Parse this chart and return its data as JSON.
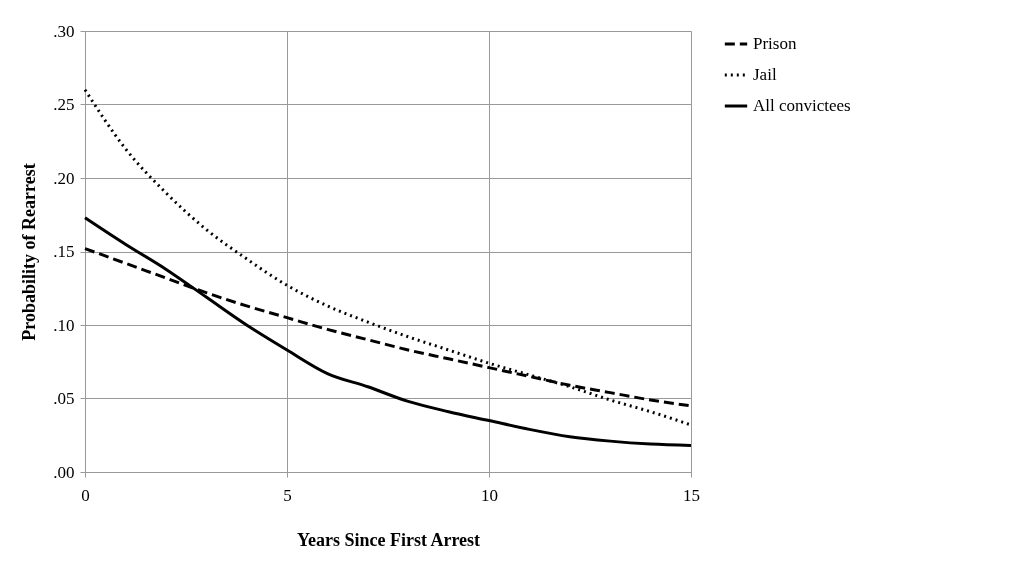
{
  "chart_data": {
    "type": "line",
    "xlabel": "Years Since First Arrest",
    "ylabel": "Probability of Rearrest",
    "x": [
      0,
      1,
      2,
      3,
      4,
      5,
      6,
      7,
      8,
      9,
      10,
      11,
      12,
      13,
      14,
      15
    ],
    "series": [
      {
        "name": "Prison",
        "color": "#000000",
        "line_style": "dashed",
        "values": [
          0.152,
          0.142,
          0.132,
          0.122,
          0.113,
          0.105,
          0.097,
          0.09,
          0.083,
          0.077,
          0.071,
          0.065,
          0.059,
          0.054,
          0.049,
          0.045
        ]
      },
      {
        "name": "Jail",
        "color": "#000000",
        "line_style": "dotted",
        "values": [
          0.26,
          0.22,
          0.19,
          0.165,
          0.145,
          0.127,
          0.113,
          0.102,
          0.092,
          0.083,
          0.074,
          0.066,
          0.058,
          0.049,
          0.041,
          0.032
        ]
      },
      {
        "name": "All convictees",
        "color": "#000000",
        "line_style": "solid",
        "values": [
          0.173,
          0.155,
          0.138,
          0.119,
          0.1,
          0.083,
          0.067,
          0.058,
          0.048,
          0.041,
          0.035,
          0.029,
          0.024,
          0.021,
          0.019,
          0.018
        ]
      }
    ],
    "xlim": [
      0,
      15
    ],
    "xticks": [
      0,
      5,
      10,
      15
    ],
    "ylim": [
      0,
      0.3
    ],
    "yticks": [
      {
        "value": 0,
        "label": ".00"
      },
      {
        "value": 0.05,
        "label": ".05"
      },
      {
        "value": 0.1,
        "label": ".10"
      },
      {
        "value": 0.15,
        "label": ".15"
      },
      {
        "value": 0.2,
        "label": ".20"
      },
      {
        "value": 0.25,
        "label": ".25"
      },
      {
        "value": 0.3,
        "label": ".30"
      }
    ],
    "grid": true,
    "legend": "right",
    "marker": "none"
  }
}
